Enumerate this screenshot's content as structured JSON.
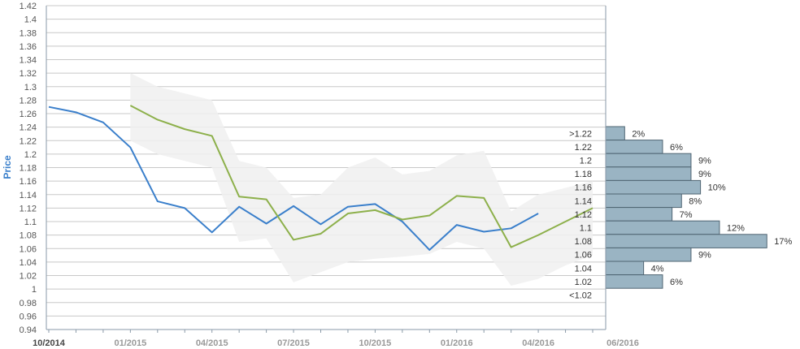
{
  "chart_data": [
    {
      "type": "line",
      "title": "",
      "ylabel": "Price",
      "ylim": [
        0.94,
        1.42
      ],
      "y_ticks": [
        0.94,
        0.96,
        0.98,
        1,
        1.02,
        1.04,
        1.06,
        1.08,
        1.1,
        1.12,
        1.14,
        1.16,
        1.18,
        1.2,
        1.22,
        1.24,
        1.26,
        1.28,
        1.3,
        1.32,
        1.34,
        1.36,
        1.38,
        1.4,
        1.42
      ],
      "y_tick_labels": [
        "0.94",
        "0.96",
        "0.98",
        "1",
        "1.02",
        "1.04",
        "1.06",
        "1.08",
        "1.1",
        "1.12",
        "1.14",
        "1.16",
        "1.18",
        "1.2",
        "1.22",
        "1.24",
        "1.26",
        "1.28",
        "1.3",
        "1.32",
        "1.34",
        "1.36",
        "1.38",
        "1.4",
        "1.42"
      ],
      "x_tick_labels": [
        "10/2014",
        "01/2015",
        "04/2015",
        "07/2015",
        "10/2015",
        "01/2016",
        "04/2016",
        "06/2016"
      ],
      "grid": true,
      "series": [
        {
          "role": "actual",
          "color": "#3a7fcb",
          "x": [
            "10/2014",
            "11/2014",
            "12/2014",
            "01/2015",
            "02/2015",
            "03/2015",
            "04/2015",
            "05/2015",
            "06/2015",
            "07/2015",
            "08/2015",
            "09/2015",
            "10/2015",
            "11/2015",
            "12/2015",
            "01/2016",
            "02/2016",
            "03/2016",
            "04/2016"
          ],
          "values": [
            1.27,
            1.262,
            1.247,
            1.21,
            1.13,
            1.12,
            1.084,
            1.122,
            1.097,
            1.123,
            1.096,
            1.122,
            1.126,
            1.1,
            1.058,
            1.095,
            1.085,
            1.09,
            1.112
          ]
        },
        {
          "role": "forecast",
          "color": "#8db04b",
          "x": [
            "01/2015",
            "02/2015",
            "03/2015",
            "04/2015",
            "05/2015",
            "06/2015",
            "07/2015",
            "08/2015",
            "09/2015",
            "10/2015",
            "11/2015",
            "12/2015",
            "01/2016",
            "02/2016",
            "03/2016",
            "04/2016",
            "05/2016",
            "06/2016"
          ],
          "values": [
            1.272,
            1.251,
            1.237,
            1.227,
            1.137,
            1.133,
            1.073,
            1.082,
            1.112,
            1.117,
            1.103,
            1.109,
            1.138,
            1.135,
            1.062,
            1.08,
            1.1,
            1.12
          ]
        },
        {
          "role": "forecast-range",
          "color": "#f0f0f0",
          "x": [
            "01/2015",
            "02/2015",
            "03/2015",
            "04/2015",
            "05/2015",
            "06/2015",
            "07/2015",
            "08/2015",
            "09/2015",
            "10/2015",
            "11/2015",
            "12/2015",
            "01/2016",
            "02/2016",
            "03/2016",
            "04/2016",
            "05/2016",
            "06/2016"
          ],
          "low": [
            1.22,
            1.2,
            1.19,
            1.18,
            1.07,
            1.075,
            1.01,
            1.025,
            1.04,
            1.045,
            1.048,
            1.052,
            1.07,
            1.06,
            1.005,
            1.015,
            1.035,
            1.05
          ],
          "high": [
            1.32,
            1.3,
            1.29,
            1.28,
            1.19,
            1.18,
            1.135,
            1.14,
            1.18,
            1.195,
            1.17,
            1.175,
            1.198,
            1.205,
            1.115,
            1.14,
            1.15,
            1.16
          ]
        }
      ]
    },
    {
      "type": "bar",
      "orientation": "horizontal",
      "color": "#9ab4c3",
      "categories": [
        ">1.22",
        "1.22",
        "1.2",
        "1.18",
        "1.16",
        "1.14",
        "1.12",
        "1.1",
        "1.08",
        "1.06",
        "1.04",
        "1.02",
        "<1.02"
      ],
      "values": [
        2,
        6,
        9,
        9,
        10,
        8,
        7,
        12,
        17,
        9,
        4,
        6,
        null
      ],
      "value_labels": [
        "2%",
        "6%",
        "9%",
        "9%",
        "10%",
        "8%",
        "7%",
        "12%",
        "17%",
        "9%",
        "4%",
        "6%",
        ""
      ]
    }
  ]
}
